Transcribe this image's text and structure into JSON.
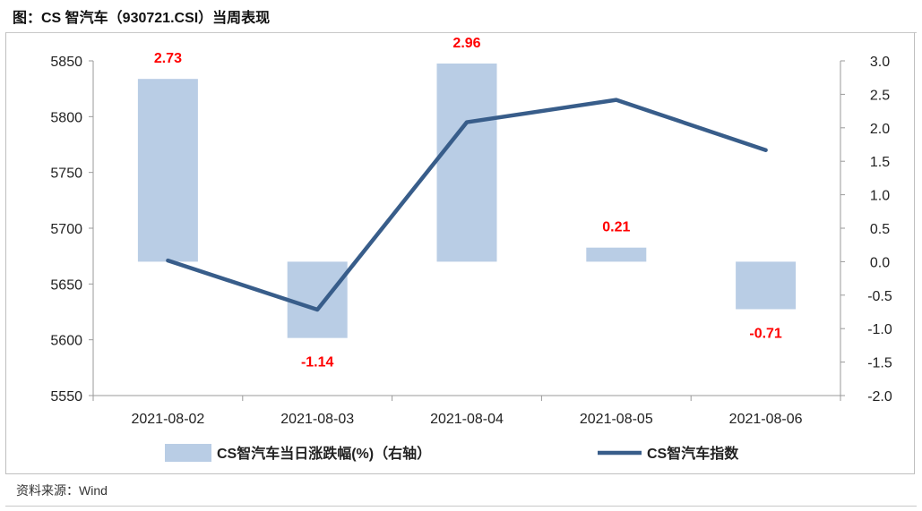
{
  "title": "图：CS 智汽车（930721.CSI）当周表现",
  "source": "资料来源：Wind",
  "chart_data": {
    "type": "bar+line",
    "categories": [
      "2021-08-02",
      "2021-08-03",
      "2021-08-04",
      "2021-08-05",
      "2021-08-06"
    ],
    "series": [
      {
        "name": "CS智汽车当日涨跌幅(%)（右轴）",
        "type": "bar",
        "axis": "right",
        "values": [
          2.73,
          -1.14,
          2.96,
          0.21,
          -0.71
        ],
        "labels": [
          "2.73",
          "-1.14",
          "2.96",
          "0.21",
          "-0.71"
        ],
        "color": "#b9cde5",
        "label_color": "#ff0000"
      },
      {
        "name": "CS智汽车指数",
        "type": "line",
        "axis": "left",
        "values": [
          5671,
          5627,
          5795,
          5815,
          5770
        ],
        "color": "#385d8a"
      }
    ],
    "left_axis": {
      "min": 5550,
      "max": 5850,
      "ticks": [
        "5550",
        "5600",
        "5650",
        "5700",
        "5750",
        "5800",
        "5850"
      ]
    },
    "right_axis": {
      "min": -2.0,
      "max": 3.0,
      "ticks": [
        "-2.0",
        "-1.5",
        "-1.0",
        "-0.5",
        "0.0",
        "0.5",
        "1.0",
        "1.5",
        "2.0",
        "2.5",
        "3.0"
      ]
    },
    "grid": false,
    "legend": "bottom"
  }
}
